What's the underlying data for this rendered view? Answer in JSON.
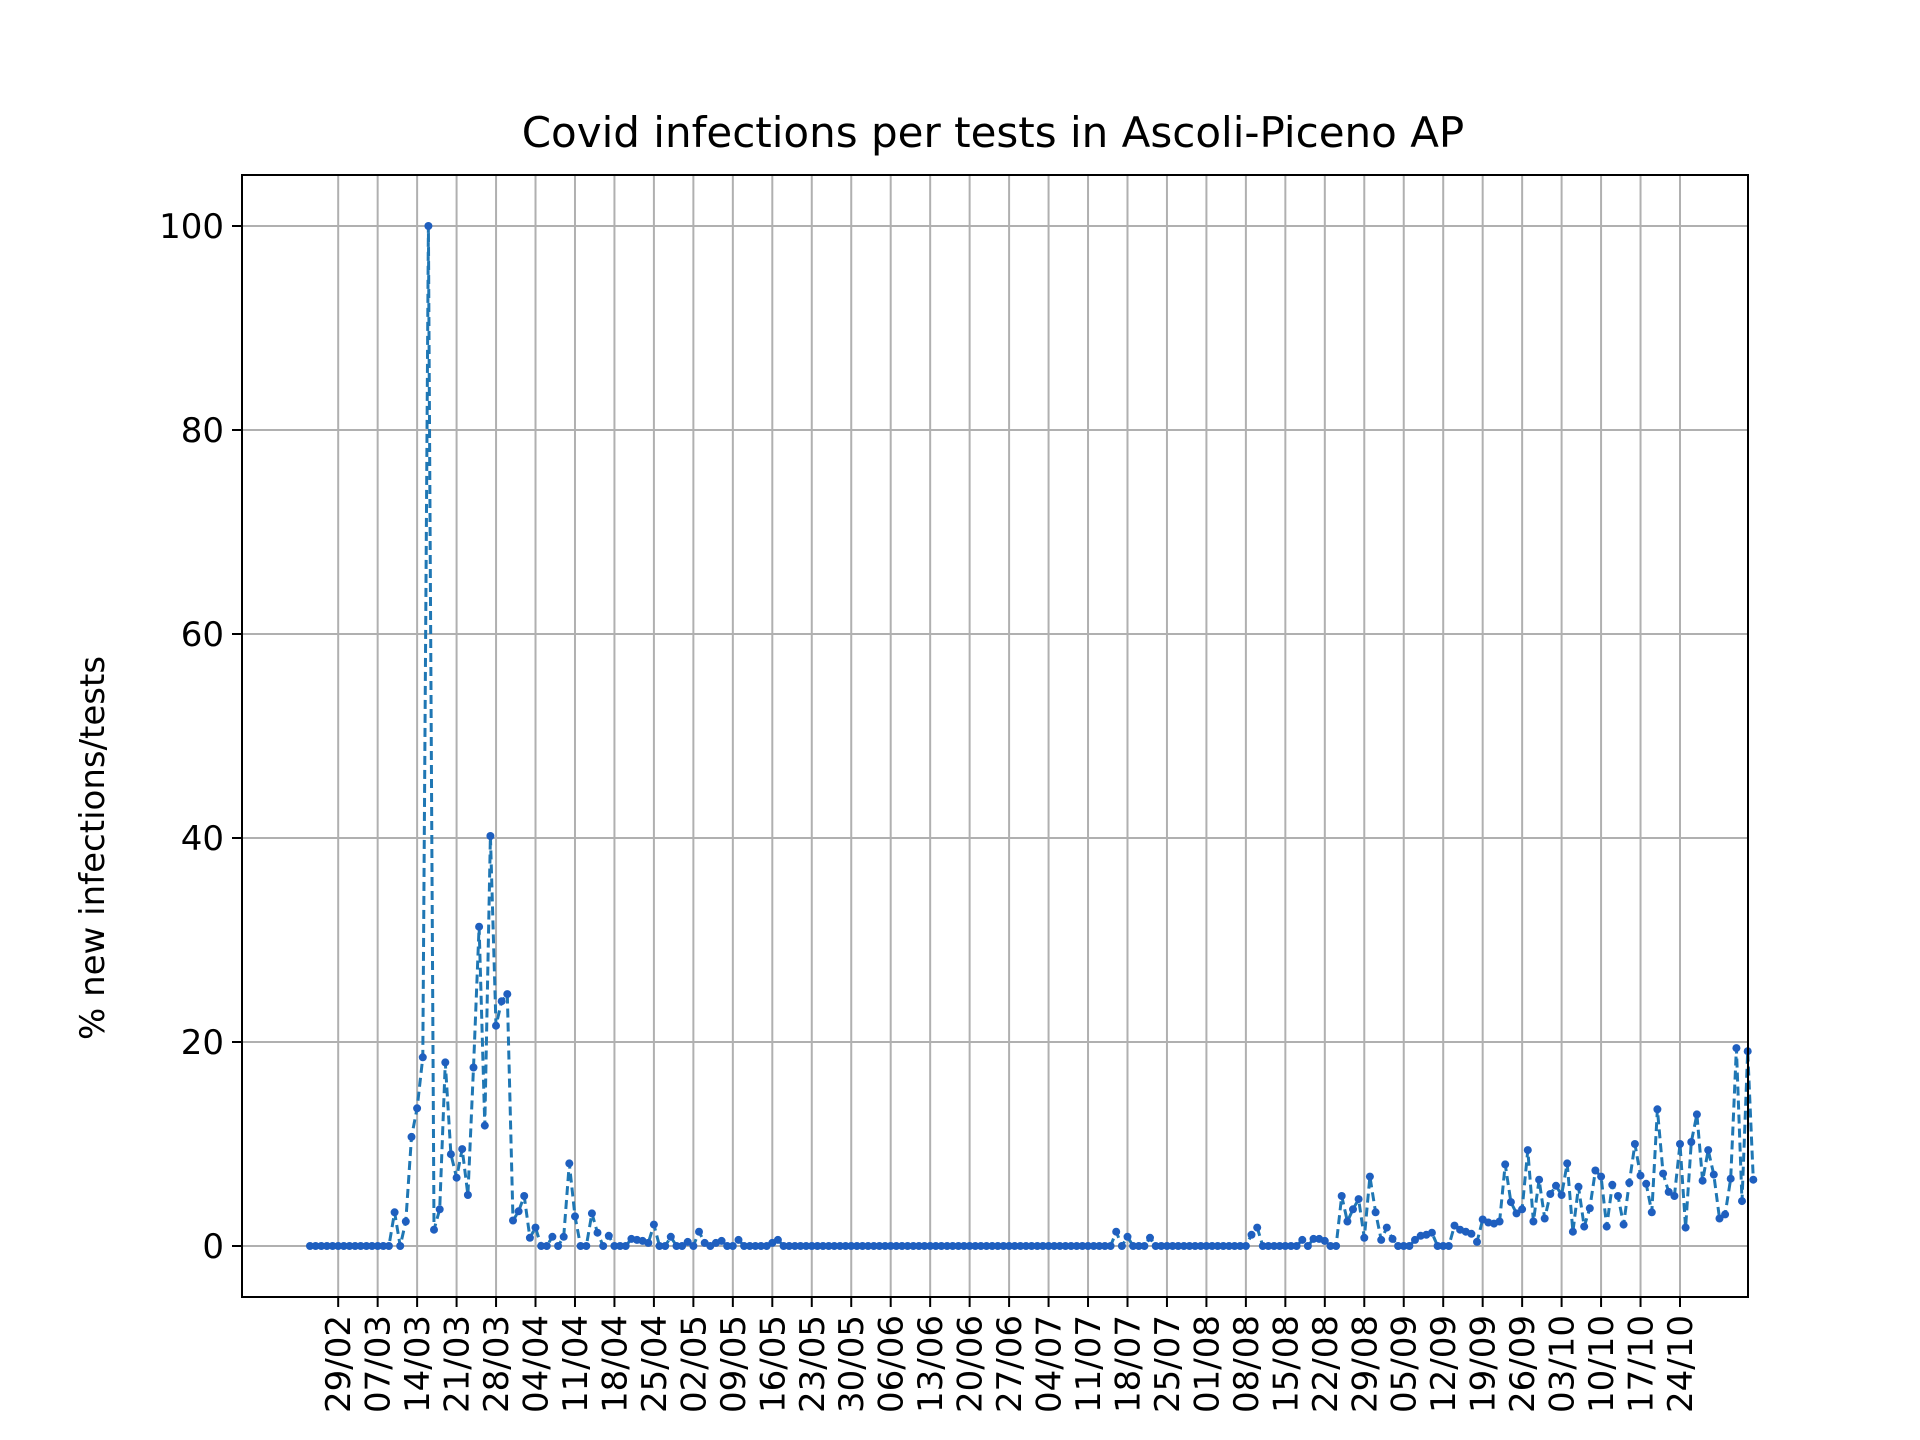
{
  "chart_data": {
    "type": "line",
    "title": "Covid infections per tests in Ascoli-Piceno AP",
    "xlabel": "",
    "ylabel": "% new infections/tests",
    "grid": true,
    "legend": "none",
    "line_style": "dashed",
    "marker": "dot",
    "color": "#1f77b4",
    "marker_color": "#1f5fbf",
    "x_start": "2020-02-24",
    "x_end": "2020-10-24",
    "ylim": [
      -5,
      105
    ],
    "yticks": [
      0,
      20,
      40,
      60,
      80,
      100
    ],
    "xtick_labels": [
      "29/02",
      "07/03",
      "14/03",
      "21/03",
      "28/03",
      "04/04",
      "11/04",
      "18/04",
      "25/04",
      "02/05",
      "09/05",
      "16/05",
      "23/05",
      "30/05",
      "06/06",
      "13/06",
      "20/06",
      "27/06",
      "04/07",
      "11/07",
      "18/07",
      "25/07",
      "01/08",
      "08/08",
      "15/08",
      "22/08",
      "29/08",
      "05/09",
      "12/09",
      "19/09",
      "26/09",
      "03/10",
      "10/10",
      "17/10",
      "24/10"
    ],
    "values": [
      0,
      0,
      0,
      0,
      0,
      0,
      0,
      0,
      0,
      0,
      0,
      0,
      0,
      0,
      0,
      3.3,
      0,
      2.4,
      10.7,
      13.5,
      18.5,
      100,
      1.6,
      3.6,
      18,
      9,
      6.7,
      9.5,
      5,
      17.5,
      31.3,
      11.8,
      40.2,
      21.6,
      24,
      24.7,
      2.5,
      3.4,
      4.9,
      0.8,
      1.8,
      0,
      0,
      0.9,
      0,
      0.9,
      8.1,
      2.9,
      0,
      0,
      3.2,
      1.3,
      0,
      1,
      0,
      0,
      0,
      0.7,
      0.6,
      0.5,
      0.3,
      2.1,
      0,
      0,
      0.9,
      0,
      0,
      0.4,
      0,
      1.4,
      0.3,
      0,
      0.3,
      0.5,
      0,
      0,
      0.6,
      0,
      0,
      0,
      0,
      0,
      0.3,
      0.6,
      0,
      0,
      0,
      0,
      0,
      0,
      0,
      0,
      0,
      0,
      0,
      0,
      0,
      0,
      0,
      0,
      0,
      0,
      0,
      0,
      0,
      0,
      0,
      0,
      0,
      0,
      0,
      0,
      0,
      0,
      0,
      0,
      0,
      0,
      0,
      0,
      0,
      0,
      0,
      0,
      0,
      0,
      0,
      0,
      0,
      0,
      0,
      0,
      0,
      0,
      0,
      0,
      0,
      0,
      0,
      0,
      0,
      0,
      0,
      1.4,
      0,
      0.9,
      0,
      0,
      0,
      0.8,
      0,
      0,
      0,
      0,
      0,
      0,
      0,
      0,
      0,
      0,
      0,
      0,
      0,
      0,
      0,
      0,
      0,
      1.1,
      1.8,
      0,
      0,
      0,
      0,
      0,
      0,
      0,
      0.6,
      0,
      0.7,
      0.7,
      0.5,
      0,
      0,
      4.9,
      2.4,
      3.6,
      4.6,
      0.8,
      6.8,
      3.3,
      0.6,
      1.8,
      0.7,
      0,
      0,
      0,
      0.6,
      1,
      1.1,
      1.3,
      0,
      0,
      0,
      2,
      1.6,
      1.4,
      1.2,
      0.4,
      2.6,
      2.3,
      2.2,
      2.4,
      8,
      4.3,
      3.2,
      3.6,
      9.4,
      2.4,
      6.5,
      2.7,
      5.1,
      5.9,
      5,
      8.1,
      1.4,
      5.8,
      1.9,
      3.7,
      7.4,
      6.8,
      1.9,
      6,
      4.9,
      2.1,
      6.2,
      10,
      6.9,
      6.1,
      3.3,
      13.4,
      7.1,
      5.3,
      4.9,
      10,
      1.8,
      10.2,
      12.9,
      6.4,
      9.4,
      7,
      2.7,
      3.1,
      6.6,
      19.4,
      4.4,
      19.1,
      6.5
    ]
  }
}
